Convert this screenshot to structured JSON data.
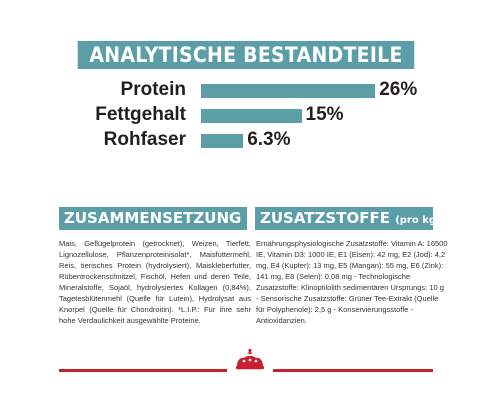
{
  "title": "ANALYTISCHE BESTANDTEILE",
  "nutrients": [
    {
      "label": "Protein",
      "value_text": "26%",
      "value": 26
    },
    {
      "label": "Fettgehalt",
      "value_text": "15%",
      "value": 15
    },
    {
      "label": "Rohfaser",
      "value_text": "6.3%",
      "value": 6.3
    }
  ],
  "composition": {
    "heading": "ZUSAMMENSETZUNG",
    "text": "Mais, Geflügelprotein (getrocknet), Weizen, Tierfett, Lignozellulose, Pflanzenproteinisolat*, Maisfuttermehl, Reis, tierisches Protein (hydrolysiert), Maiskleberfutter, Rübentrockenschnitzel, Fischöl, Hefen und deren Teile, Mineralstoffe, Sojaöl, hydrolysiertes Kollagen (0,84%), Tagetesblütenmehl (Quelle für Lutein), Hydrolysat aus Knorpel (Quelle für Chondroitin). *L.I.P.: Für ihre sehr hohe Verdaulichkeit ausgewählte Proteine."
  },
  "additives": {
    "heading": "ZUSATZSTOFFE",
    "heading_unit": "(pro kg)",
    "text": "Ernährungsphysiologische Zusatzstoffe: Vitamin A: 16500 IE, Vitamin D3: 1000 IE, E1 (Eisen): 42 mg, E2 (Jod): 4,2 mg, E4 (Kupfer): 13 mg, E5 (Mangan): 55 mg, E6 (Zink): 141 mg, E8 (Selen): 0,08 mg - Technologische Zusatzstoffe: Klinoptilolith sedimentären Ursprungs: 10 g - Sensorische Zusatzstoffe: Grüner Tee-Extrakt (Quelle für Polyphenole): 2,5 g - Konservierungsstoffe - Antioxidanzien."
  },
  "colors": {
    "accent": "#5c9ea7",
    "brand_red": "#c8202f"
  },
  "logo": "royal-canin-crown-icon"
}
